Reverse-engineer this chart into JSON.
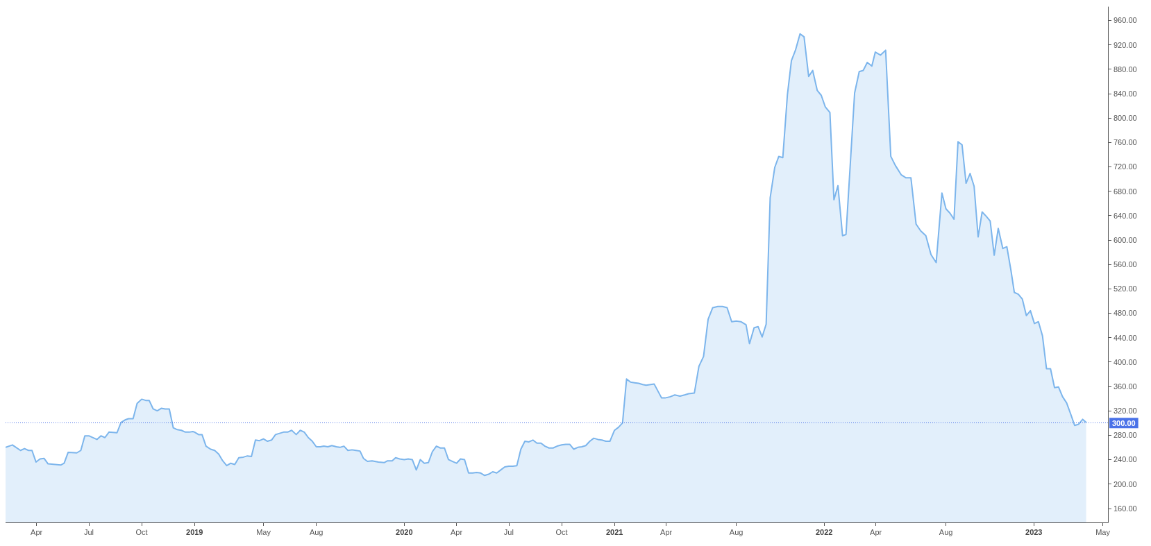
{
  "chart_data": {
    "type": "area",
    "color": "#7cb5ec",
    "x": [
      "2018-02-06",
      "2018-02-18",
      "2018-03-04",
      "2018-03-11",
      "2018-03-18",
      "2018-03-24",
      "2018-03-31",
      "2018-04-07",
      "2018-04-14",
      "2018-04-21",
      "2018-05-13",
      "2018-05-19",
      "2018-05-26",
      "2018-06-10",
      "2018-06-17",
      "2018-06-24",
      "2018-07-01",
      "2018-07-15",
      "2018-07-22",
      "2018-07-29",
      "2018-08-05",
      "2018-08-19",
      "2018-08-26",
      "2018-09-02",
      "2018-09-08",
      "2018-09-16",
      "2018-09-23",
      "2018-10-01",
      "2018-10-08",
      "2018-10-14",
      "2018-10-21",
      "2018-10-28",
      "2018-11-04",
      "2018-11-11",
      "2018-11-18",
      "2018-11-25",
      "2018-12-02",
      "2018-12-09",
      "2018-12-16",
      "2018-12-23",
      "2018-12-29",
      "2019-01-01",
      "2019-01-08",
      "2019-01-14",
      "2019-01-21",
      "2019-01-29",
      "2019-02-05",
      "2019-02-12",
      "2019-02-19",
      "2019-02-26",
      "2019-03-05",
      "2019-03-12",
      "2019-03-19",
      "2019-03-27",
      "2019-04-03",
      "2019-04-10",
      "2019-04-17",
      "2019-04-24",
      "2019-05-01",
      "2019-05-08",
      "2019-05-15",
      "2019-05-22",
      "2019-05-29",
      "2019-06-05",
      "2019-06-12",
      "2019-06-19",
      "2019-06-27",
      "2019-07-04",
      "2019-07-11",
      "2019-07-18",
      "2019-07-25",
      "2019-08-01",
      "2019-08-08",
      "2019-08-14",
      "2019-08-21",
      "2019-08-28",
      "2019-09-05",
      "2019-09-11",
      "2019-09-18",
      "2019-09-25",
      "2019-10-02",
      "2019-10-09",
      "2019-10-16",
      "2019-10-22",
      "2019-10-29",
      "2019-11-06",
      "2019-11-17",
      "2019-11-27",
      "2019-12-03",
      "2019-12-11",
      "2019-12-17",
      "2019-12-24",
      "2020-01-01",
      "2020-01-08",
      "2020-01-15",
      "2020-01-22",
      "2020-01-29",
      "2020-02-05",
      "2020-02-12",
      "2020-02-19",
      "2020-02-26",
      "2020-03-04",
      "2020-03-11",
      "2020-03-18",
      "2020-03-25",
      "2020-04-01",
      "2020-04-08",
      "2020-04-15",
      "2020-04-22",
      "2020-04-29",
      "2020-05-06",
      "2020-05-13",
      "2020-05-20",
      "2020-05-27",
      "2020-06-03",
      "2020-06-10",
      "2020-06-17",
      "2020-06-24",
      "2020-07-01",
      "2020-07-08",
      "2020-07-15",
      "2020-07-22",
      "2020-07-29",
      "2020-08-05",
      "2020-08-12",
      "2020-08-19",
      "2020-08-26",
      "2020-09-02",
      "2020-09-09",
      "2020-09-16",
      "2020-09-23",
      "2020-10-01",
      "2020-10-08",
      "2020-10-15",
      "2020-10-22",
      "2020-10-29",
      "2020-11-05",
      "2020-11-12",
      "2020-11-19",
      "2020-11-26",
      "2020-12-03",
      "2020-12-10",
      "2020-12-17",
      "2020-12-24",
      "2021-01-01",
      "2021-01-08",
      "2021-01-15",
      "2021-01-22",
      "2021-01-29",
      "2021-02-05",
      "2021-02-12",
      "2021-02-19",
      "2021-02-25",
      "2021-03-11",
      "2021-03-24",
      "2021-03-30",
      "2021-04-08",
      "2021-04-16",
      "2021-04-25",
      "2021-05-03",
      "2021-05-10",
      "2021-05-20",
      "2021-05-28",
      "2021-06-05",
      "2021-06-13",
      "2021-06-21",
      "2021-06-30",
      "2021-07-08",
      "2021-07-16",
      "2021-07-24",
      "2021-08-01",
      "2021-08-09",
      "2021-08-18",
      "2021-08-24",
      "2021-09-01",
      "2021-09-08",
      "2021-09-15",
      "2021-09-22",
      "2021-09-29",
      "2021-10-07",
      "2021-10-14",
      "2021-10-21",
      "2021-10-29",
      "2021-11-05",
      "2021-11-12",
      "2021-11-20",
      "2021-11-27",
      "2021-12-05",
      "2021-12-12",
      "2021-12-20",
      "2021-12-27",
      "2022-01-03",
      "2022-01-11",
      "2022-01-18",
      "2022-01-25",
      "2022-02-02",
      "2022-02-08",
      "2022-02-23",
      "2022-03-03",
      "2022-03-10",
      "2022-03-17",
      "2022-03-25",
      "2022-03-31",
      "2022-04-09",
      "2022-04-18",
      "2022-04-27",
      "2022-05-05",
      "2022-05-15",
      "2022-05-23",
      "2022-06-01",
      "2022-06-10",
      "2022-06-18",
      "2022-06-27",
      "2022-07-06",
      "2022-07-15",
      "2022-07-25",
      "2022-08-01",
      "2022-08-08",
      "2022-08-15",
      "2022-08-22",
      "2022-08-29",
      "2022-09-05",
      "2022-09-12",
      "2022-09-19",
      "2022-09-26",
      "2022-10-03",
      "2022-10-10",
      "2022-10-17",
      "2022-10-24",
      "2022-10-31",
      "2022-11-08",
      "2022-11-15",
      "2022-11-22",
      "2022-11-28",
      "2022-12-05",
      "2022-12-12",
      "2022-12-19",
      "2022-12-26",
      "2023-01-02",
      "2023-01-09",
      "2023-01-16",
      "2023-01-23",
      "2023-01-30",
      "2023-02-06",
      "2023-02-13",
      "2023-02-20",
      "2023-02-27",
      "2023-03-06",
      "2023-03-13",
      "2023-03-20",
      "2023-03-27",
      "2023-04-02"
    ],
    "values": [
      260,
      264,
      255,
      258,
      255,
      255,
      236,
      241,
      242,
      233,
      231,
      234,
      252,
      251,
      255,
      279,
      279,
      273,
      279,
      276,
      285,
      284,
      301,
      305,
      307,
      307,
      332,
      339,
      337,
      337,
      323,
      320,
      324,
      323,
      323,
      292,
      289,
      288,
      285,
      285,
      286,
      285,
      281,
      281,
      262,
      257,
      255,
      249,
      238,
      230,
      234,
      232,
      243,
      244,
      246,
      245,
      272,
      271,
      274,
      270,
      272,
      281,
      283,
      285,
      285,
      288,
      281,
      288,
      285,
      276,
      270,
      261,
      261,
      262,
      261,
      263,
      261,
      260,
      262,
      255,
      256,
      255,
      254,
      242,
      237,
      238,
      236,
      235,
      238,
      238,
      243,
      241,
      240,
      241,
      240,
      223,
      240,
      234,
      235,
      253,
      262,
      259,
      259,
      240,
      237,
      234,
      241,
      240,
      218,
      218,
      219,
      218,
      214,
      216,
      220,
      218,
      223,
      228,
      229,
      229,
      230,
      257,
      270,
      269,
      272,
      267,
      267,
      262,
      259,
      259,
      262,
      264,
      265,
      265,
      257,
      260,
      261,
      263,
      270,
      275,
      273,
      272,
      270,
      270,
      288,
      293,
      300,
      372,
      367,
      366,
      365,
      363,
      362,
      364,
      341,
      341,
      343,
      346,
      344,
      346,
      348,
      349,
      393,
      409,
      470,
      489,
      491,
      491,
      489,
      466,
      467,
      466,
      461,
      430,
      456,
      458,
      441,
      462,
      669,
      719,
      737,
      735,
      838,
      894,
      911,
      938,
      933,
      868,
      878,
      845,
      837,
      818,
      809,
      666,
      689,
      607,
      609,
      841,
      876,
      878,
      891,
      885,
      908,
      903,
      911,
      737,
      722,
      707,
      702,
      702,
      626,
      615,
      607,
      576,
      563,
      677,
      651,
      644,
      634,
      761,
      756,
      693,
      709,
      688,
      605,
      646,
      639,
      631,
      575,
      619,
      586,
      589,
      551,
      514,
      511,
      503,
      476,
      484,
      463,
      466,
      443,
      389,
      389,
      358,
      359,
      343,
      333,
      315,
      296,
      298,
      306,
      301
    ],
    "xlim": [
      "2018-02-06",
      "2023-05-10"
    ],
    "xticks": [
      {
        "value": "2018-04-01",
        "label": "Apr"
      },
      {
        "value": "2018-07-01",
        "label": "Jul"
      },
      {
        "value": "2018-10-01",
        "label": "Oct"
      },
      {
        "value": "2019-01-01",
        "label": "2019"
      },
      {
        "value": "2019-05-01",
        "label": "May"
      },
      {
        "value": "2019-08-01",
        "label": "Aug"
      },
      {
        "value": "2020-01-01",
        "label": "2020"
      },
      {
        "value": "2020-04-01",
        "label": "Apr"
      },
      {
        "value": "2020-07-01",
        "label": "Jul"
      },
      {
        "value": "2020-10-01",
        "label": "Oct"
      },
      {
        "value": "2021-01-01",
        "label": "2021"
      },
      {
        "value": "2021-04-01",
        "label": "Apr"
      },
      {
        "value": "2021-08-01",
        "label": "Aug"
      },
      {
        "value": "2022-01-01",
        "label": "2022"
      },
      {
        "value": "2022-04-01",
        "label": "Apr"
      },
      {
        "value": "2022-08-01",
        "label": "Aug"
      },
      {
        "value": "2023-01-01",
        "label": "2023"
      },
      {
        "value": "2023-05-01",
        "label": "May"
      }
    ],
    "ylim": [
      137,
      982
    ],
    "yticks": [
      {
        "value": 160,
        "label": "160.00"
      },
      {
        "value": 200,
        "label": "200.00"
      },
      {
        "value": 240,
        "label": "240.00"
      },
      {
        "value": 280,
        "label": "280.00"
      },
      {
        "value": 320,
        "label": "320.00"
      },
      {
        "value": 360,
        "label": "360.00"
      },
      {
        "value": 400,
        "label": "400.00"
      },
      {
        "value": 440,
        "label": "440.00"
      },
      {
        "value": 480,
        "label": "480.00"
      },
      {
        "value": 520,
        "label": "520.00"
      },
      {
        "value": 560,
        "label": "560.00"
      },
      {
        "value": 600,
        "label": "600.00"
      },
      {
        "value": 640,
        "label": "640.00"
      },
      {
        "value": 680,
        "label": "680.00"
      },
      {
        "value": 720,
        "label": "720.00"
      },
      {
        "value": 760,
        "label": "760.00"
      },
      {
        "value": 800,
        "label": "800.00"
      },
      {
        "value": 840,
        "label": "840.00"
      },
      {
        "value": 880,
        "label": "880.00"
      },
      {
        "value": 920,
        "label": "920.00"
      },
      {
        "value": 960,
        "label": "960.00"
      }
    ],
    "ref_lines": [
      {
        "axis": "y",
        "value": 300,
        "label": "300.00",
        "color": "#4a72e8",
        "line_style": "dotted"
      }
    ]
  }
}
